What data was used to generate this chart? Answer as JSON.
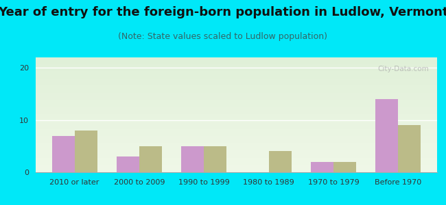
{
  "title": "Year of entry for the foreign-born population in Ludlow, Vermont",
  "subtitle": "(Note: State values scaled to Ludlow population)",
  "categories": [
    "2010 or later",
    "2000 to 2009",
    "1990 to 1999",
    "1980 to 1989",
    "1970 to 1979",
    "Before 1970"
  ],
  "ludlow_values": [
    7,
    3,
    5,
    0,
    2,
    14
  ],
  "vermont_values": [
    8,
    5,
    5,
    4,
    2,
    9
  ],
  "ludlow_color": "#cc99cc",
  "vermont_color": "#bbbb88",
  "background_outer": "#00e8f8",
  "plot_bg_top": "#e0f0d8",
  "plot_bg_bottom": "#f0f8e8",
  "ylim": [
    0,
    22
  ],
  "yticks": [
    0,
    10,
    20
  ],
  "bar_width": 0.35,
  "title_fontsize": 13,
  "subtitle_fontsize": 9,
  "tick_fontsize": 8,
  "legend_fontsize": 9,
  "watermark": "City-Data.com"
}
